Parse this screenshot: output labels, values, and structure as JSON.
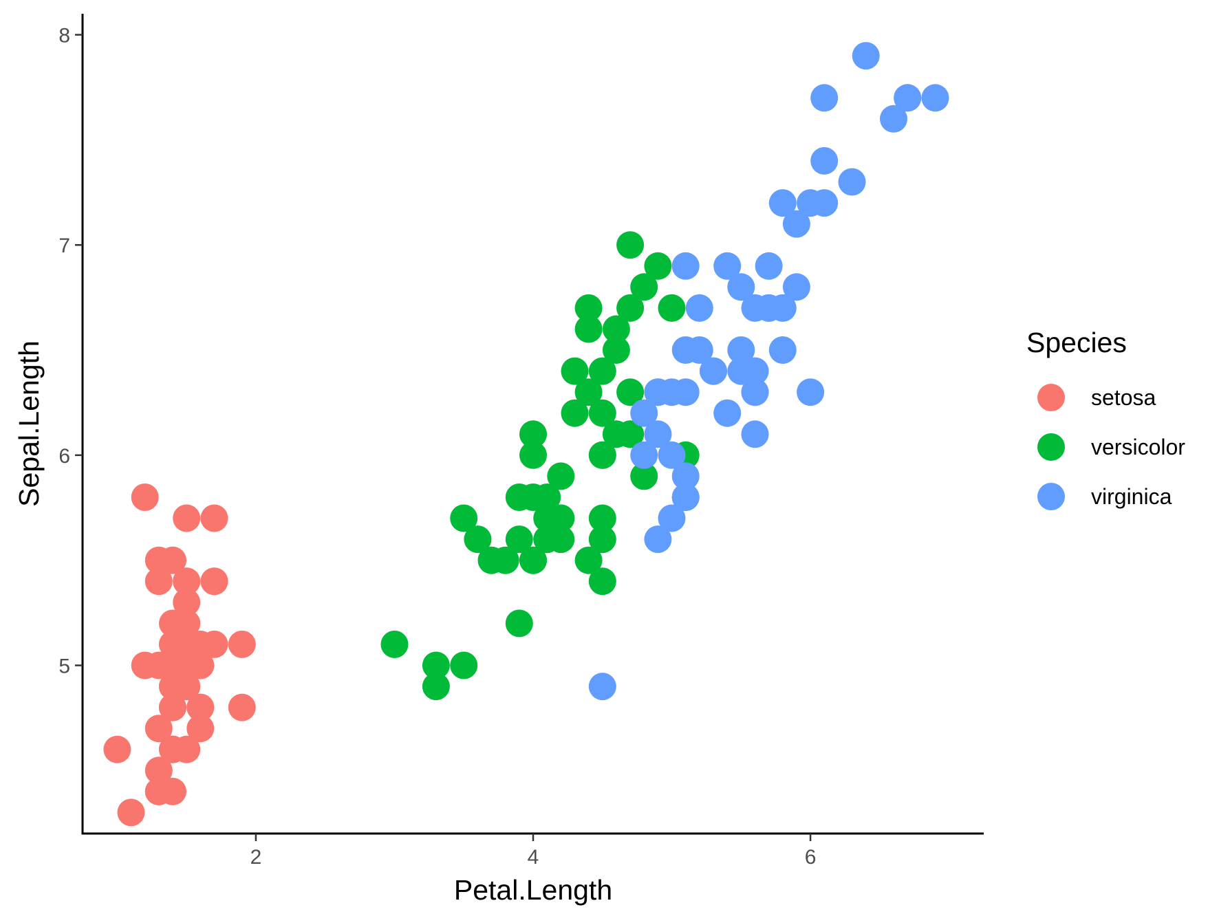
{
  "chart_data": {
    "type": "scatter",
    "xlabel": "Petal.Length",
    "ylabel": "Sepal.Length",
    "xlim": [
      0.75,
      7.25
    ],
    "ylim": [
      4.2,
      8.1
    ],
    "x_ticks": [
      2,
      4,
      6
    ],
    "x_tick_labels": [
      "2",
      "4",
      "6"
    ],
    "y_ticks": [
      5,
      6,
      7,
      8
    ],
    "y_tick_labels": [
      "5",
      "6",
      "7",
      "8"
    ],
    "grid": false,
    "legend_title": "Species",
    "legend_placement": "right",
    "series": [
      {
        "name": "setosa",
        "color": "#F8766D",
        "points": [
          [
            1.4,
            5.1
          ],
          [
            1.4,
            4.9
          ],
          [
            1.3,
            4.7
          ],
          [
            1.5,
            4.6
          ],
          [
            1.4,
            5.0
          ],
          [
            1.7,
            5.4
          ],
          [
            1.4,
            4.6
          ],
          [
            1.5,
            5.0
          ],
          [
            1.4,
            4.4
          ],
          [
            1.5,
            4.9
          ],
          [
            1.5,
            5.4
          ],
          [
            1.6,
            4.8
          ],
          [
            1.4,
            4.8
          ],
          [
            1.1,
            4.3
          ],
          [
            1.2,
            5.8
          ],
          [
            1.5,
            5.7
          ],
          [
            1.3,
            5.4
          ],
          [
            1.4,
            5.1
          ],
          [
            1.7,
            5.7
          ],
          [
            1.5,
            5.1
          ],
          [
            1.7,
            5.4
          ],
          [
            1.5,
            5.1
          ],
          [
            1.0,
            4.6
          ],
          [
            1.7,
            5.1
          ],
          [
            1.9,
            4.8
          ],
          [
            1.6,
            5.0
          ],
          [
            1.6,
            5.0
          ],
          [
            1.5,
            5.2
          ],
          [
            1.4,
            5.2
          ],
          [
            1.6,
            4.7
          ],
          [
            1.6,
            4.8
          ],
          [
            1.5,
            5.4
          ],
          [
            1.5,
            5.2
          ],
          [
            1.4,
            5.5
          ],
          [
            1.5,
            4.9
          ],
          [
            1.2,
            5.0
          ],
          [
            1.3,
            5.5
          ],
          [
            1.4,
            4.9
          ],
          [
            1.3,
            4.4
          ],
          [
            1.5,
            5.1
          ],
          [
            1.3,
            5.0
          ],
          [
            1.3,
            4.5
          ],
          [
            1.3,
            4.4
          ],
          [
            1.6,
            5.0
          ],
          [
            1.9,
            5.1
          ],
          [
            1.4,
            4.8
          ],
          [
            1.6,
            5.1
          ],
          [
            1.4,
            4.6
          ],
          [
            1.5,
            5.3
          ],
          [
            1.4,
            5.0
          ]
        ]
      },
      {
        "name": "versicolor",
        "color": "#00BA38",
        "points": [
          [
            4.7,
            7.0
          ],
          [
            4.5,
            6.4
          ],
          [
            4.9,
            6.9
          ],
          [
            4.0,
            5.5
          ],
          [
            4.6,
            6.5
          ],
          [
            4.5,
            5.7
          ],
          [
            4.7,
            6.3
          ],
          [
            3.3,
            4.9
          ],
          [
            4.6,
            6.6
          ],
          [
            3.9,
            5.2
          ],
          [
            3.5,
            5.0
          ],
          [
            4.2,
            5.9
          ],
          [
            4.0,
            6.0
          ],
          [
            4.7,
            6.1
          ],
          [
            3.6,
            5.6
          ],
          [
            4.4,
            6.7
          ],
          [
            4.5,
            5.6
          ],
          [
            4.1,
            5.8
          ],
          [
            4.5,
            6.2
          ],
          [
            3.9,
            5.6
          ],
          [
            4.8,
            5.9
          ],
          [
            4.0,
            6.1
          ],
          [
            4.9,
            6.3
          ],
          [
            4.7,
            6.1
          ],
          [
            4.3,
            6.4
          ],
          [
            4.4,
            6.6
          ],
          [
            4.8,
            6.8
          ],
          [
            5.0,
            6.7
          ],
          [
            4.5,
            6.0
          ],
          [
            3.5,
            5.7
          ],
          [
            3.8,
            5.5
          ],
          [
            3.7,
            5.5
          ],
          [
            3.9,
            5.8
          ],
          [
            5.1,
            6.0
          ],
          [
            4.5,
            5.4
          ],
          [
            4.5,
            6.0
          ],
          [
            4.7,
            6.7
          ],
          [
            4.4,
            6.3
          ],
          [
            4.1,
            5.6
          ],
          [
            4.0,
            5.5
          ],
          [
            4.4,
            5.5
          ],
          [
            4.6,
            6.1
          ],
          [
            4.0,
            5.8
          ],
          [
            3.3,
            5.0
          ],
          [
            4.2,
            5.6
          ],
          [
            4.2,
            5.7
          ],
          [
            4.2,
            5.7
          ],
          [
            4.3,
            6.2
          ],
          [
            3.0,
            5.1
          ],
          [
            4.1,
            5.7
          ]
        ]
      },
      {
        "name": "virginica",
        "color": "#619CFF",
        "points": [
          [
            6.0,
            6.3
          ],
          [
            5.1,
            5.8
          ],
          [
            5.9,
            7.1
          ],
          [
            5.6,
            6.3
          ],
          [
            5.8,
            6.5
          ],
          [
            6.6,
            7.6
          ],
          [
            4.5,
            4.9
          ],
          [
            6.3,
            7.3
          ],
          [
            5.8,
            6.7
          ],
          [
            6.1,
            7.2
          ],
          [
            5.1,
            6.5
          ],
          [
            5.3,
            6.4
          ],
          [
            5.5,
            6.8
          ],
          [
            5.0,
            5.7
          ],
          [
            5.1,
            5.8
          ],
          [
            5.3,
            6.4
          ],
          [
            5.5,
            6.5
          ],
          [
            6.7,
            7.7
          ],
          [
            6.9,
            7.7
          ],
          [
            5.0,
            6.0
          ],
          [
            5.7,
            6.9
          ],
          [
            4.9,
            5.6
          ],
          [
            6.7,
            7.7
          ],
          [
            4.9,
            6.3
          ],
          [
            5.7,
            6.7
          ],
          [
            6.0,
            7.2
          ],
          [
            4.8,
            6.2
          ],
          [
            4.9,
            6.1
          ],
          [
            5.6,
            6.4
          ],
          [
            5.8,
            7.2
          ],
          [
            6.1,
            7.4
          ],
          [
            6.4,
            7.9
          ],
          [
            5.6,
            6.4
          ],
          [
            5.1,
            6.3
          ],
          [
            5.6,
            6.1
          ],
          [
            6.1,
            7.7
          ],
          [
            5.6,
            6.3
          ],
          [
            5.5,
            6.4
          ],
          [
            4.8,
            6.0
          ],
          [
            5.4,
            6.9
          ],
          [
            5.6,
            6.7
          ],
          [
            5.1,
            6.9
          ],
          [
            5.1,
            5.8
          ],
          [
            5.9,
            6.8
          ],
          [
            5.7,
            6.7
          ],
          [
            5.2,
            6.7
          ],
          [
            5.0,
            6.3
          ],
          [
            5.2,
            6.5
          ],
          [
            5.4,
            6.2
          ],
          [
            5.1,
            5.9
          ]
        ]
      }
    ]
  }
}
